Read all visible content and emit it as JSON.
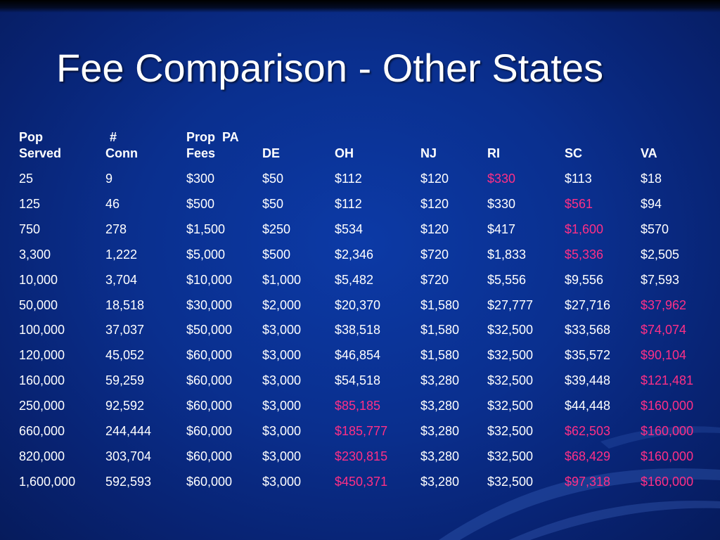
{
  "title": "Fee Comparison - Other States",
  "colors": {
    "highlight": "#ff2f86",
    "text": "#ffffff",
    "background": "#0a2f8e"
  },
  "headers": [
    [
      "Pop",
      "Served"
    ],
    [
      "#",
      "Conn"
    ],
    [
      "Prop  PA",
      "Fees"
    ],
    [
      "",
      "DE"
    ],
    [
      "",
      "OH"
    ],
    [
      "",
      "NJ"
    ],
    [
      "",
      "RI"
    ],
    [
      "",
      "SC"
    ],
    [
      "",
      "VA"
    ]
  ],
  "rows": [
    {
      "values": [
        "25",
        "9",
        "$300",
        "$50",
        "$112",
        "$120",
        "$330",
        "$113",
        "$18"
      ],
      "hl": [
        false,
        false,
        false,
        false,
        false,
        false,
        true,
        false,
        false
      ]
    },
    {
      "values": [
        "125",
        "46",
        "$500",
        "$50",
        "$112",
        "$120",
        "$330",
        "$561",
        "$94"
      ],
      "hl": [
        false,
        false,
        false,
        false,
        false,
        false,
        false,
        true,
        false
      ]
    },
    {
      "values": [
        "750",
        "278",
        "$1,500",
        "$250",
        "$534",
        "$120",
        "$417",
        "$1,600",
        "$570"
      ],
      "hl": [
        false,
        false,
        false,
        false,
        false,
        false,
        false,
        true,
        false
      ]
    },
    {
      "values": [
        "3,300",
        "1,222",
        "$5,000",
        "$500",
        "$2,346",
        "$720",
        "$1,833",
        "$5,336",
        "$2,505"
      ],
      "hl": [
        false,
        false,
        false,
        false,
        false,
        false,
        false,
        true,
        false
      ]
    },
    {
      "values": [
        "10,000",
        "3,704",
        "$10,000",
        "$1,000",
        "$5,482",
        "$720",
        "$5,556",
        "$9,556",
        "$7,593"
      ],
      "hl": [
        false,
        false,
        false,
        false,
        false,
        false,
        false,
        false,
        false
      ]
    },
    {
      "values": [
        "50,000",
        "18,518",
        "$30,000",
        "$2,000",
        "$20,370",
        "$1,580",
        "$27,777",
        "$27,716",
        "$37,962"
      ],
      "hl": [
        false,
        false,
        false,
        false,
        false,
        false,
        false,
        false,
        true
      ]
    },
    {
      "values": [
        "100,000",
        "37,037",
        "$50,000",
        "$3,000",
        "$38,518",
        "$1,580",
        "$32,500",
        "$33,568",
        "$74,074"
      ],
      "hl": [
        false,
        false,
        false,
        false,
        false,
        false,
        false,
        false,
        true
      ]
    },
    {
      "values": [
        "120,000",
        "45,052",
        "$60,000",
        "$3,000",
        "$46,854",
        "$1,580",
        "$32,500",
        "$35,572",
        "$90,104"
      ],
      "hl": [
        false,
        false,
        false,
        false,
        false,
        false,
        false,
        false,
        true
      ]
    },
    {
      "values": [
        "160,000",
        "59,259",
        "$60,000",
        "$3,000",
        "$54,518",
        "$3,280",
        "$32,500",
        "$39,448",
        "$121,481"
      ],
      "hl": [
        false,
        false,
        false,
        false,
        false,
        false,
        false,
        false,
        true
      ]
    },
    {
      "values": [
        "250,000",
        "92,592",
        "$60,000",
        "$3,000",
        "$85,185",
        "$3,280",
        "$32,500",
        "$44,448",
        "$160,000"
      ],
      "hl": [
        false,
        false,
        false,
        false,
        true,
        false,
        false,
        false,
        true
      ]
    },
    {
      "values": [
        "660,000",
        "244,444",
        "$60,000",
        "$3,000",
        "$185,777",
        "$3,280",
        "$32,500",
        "$62,503",
        "$160,000"
      ],
      "hl": [
        false,
        false,
        false,
        false,
        true,
        false,
        false,
        true,
        true
      ]
    },
    {
      "values": [
        "820,000",
        "303,704",
        "$60,000",
        "$3,000",
        "$230,815",
        "$3,280",
        "$32,500",
        "$68,429",
        "$160,000"
      ],
      "hl": [
        false,
        false,
        false,
        false,
        true,
        false,
        false,
        true,
        true
      ]
    },
    {
      "values": [
        "1,600,000",
        "592,593",
        "$60,000",
        "$3,000",
        "$450,371",
        "$3,280",
        "$32,500",
        "$97,318",
        "$160,000"
      ],
      "hl": [
        false,
        false,
        false,
        false,
        true,
        false,
        false,
        true,
        true
      ]
    }
  ]
}
